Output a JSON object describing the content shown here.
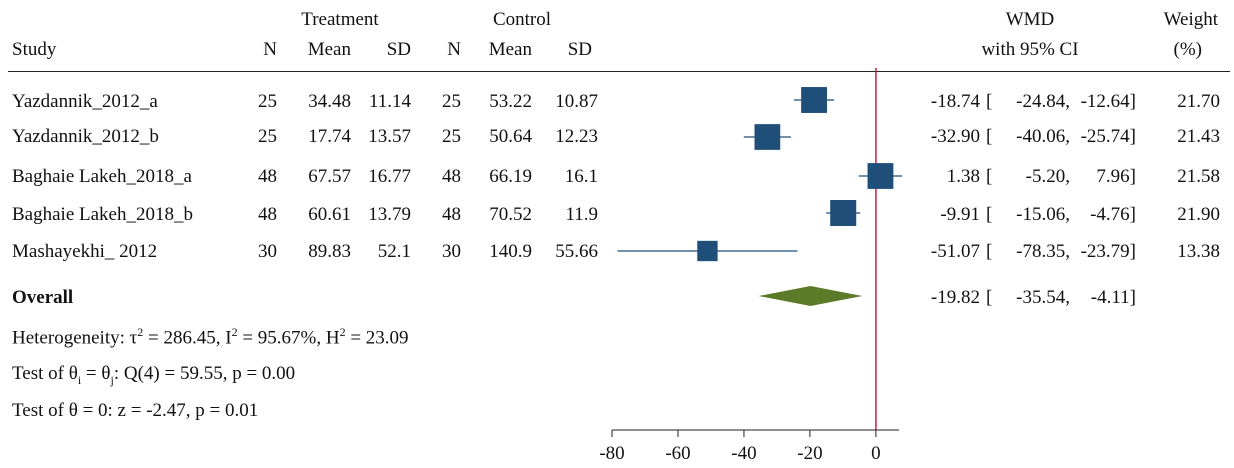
{
  "headers": {
    "treatment": "Treatment",
    "control": "Control",
    "wmd": "WMD",
    "weight": "Weight",
    "study": "Study",
    "n": "N",
    "mean": "Mean",
    "sd": "SD",
    "ci": "with 95% CI",
    "pct": "(%)"
  },
  "rows": [
    {
      "study": "Yazdannik_2012_a",
      "tn": "25",
      "tmean": "34.48",
      "tsd": "11.14",
      "cn": "25",
      "cmean": "53.22",
      "csd": "10.87",
      "wmd": "-18.74",
      "lo": "-24.84,",
      "hi": "-12.64]",
      "weight": "21.70"
    },
    {
      "study": "Yazdannik_2012_b",
      "tn": "25",
      "tmean": "17.74",
      "tsd": "13.57",
      "cn": "25",
      "cmean": "50.64",
      "csd": "12.23",
      "wmd": "-32.90",
      "lo": "-40.06,",
      "hi": "-25.74]",
      "weight": "21.43"
    },
    {
      "study": "Baghaie Lakeh_2018_a",
      "tn": "48",
      "tmean": "67.57",
      "tsd": "16.77",
      "cn": "48",
      "cmean": "66.19",
      "csd": "16.1",
      "wmd": "1.38",
      "lo": "-5.20,",
      "hi": "7.96]",
      "weight": "21.58"
    },
    {
      "study": "Baghaie Lakeh_2018_b",
      "tn": "48",
      "tmean": "60.61",
      "tsd": "13.79",
      "cn": "48",
      "cmean": "70.52",
      "csd": "11.9",
      "wmd": "-9.91",
      "lo": "-15.06,",
      "hi": "-4.76]",
      "weight": "21.90"
    },
    {
      "study": "Mashayekhi_ 2012",
      "tn": "30",
      "tmean": "89.83",
      "tsd": "52.1",
      "cn": "30",
      "cmean": "140.9",
      "csd": "55.66",
      "wmd": "-51.07",
      "lo": "-78.35,",
      "hi": "-23.79]",
      "weight": "13.38"
    }
  ],
  "overall": {
    "label": "Overall",
    "wmd": "-19.82",
    "lo": "-35.54,",
    "hi": "-4.11]"
  },
  "stats": {
    "het_prefix": "Heterogeneity: τ",
    "het_tau": " = 286.45, I",
    "het_i": " = 95.67%, H",
    "het_h": " = 23.09",
    "sup2": "2",
    "test1_a": "Test of θ",
    "sub_i": "i",
    "test1_b": " = θ",
    "sub_j": "j",
    "test1_c": ": Q(4) = 59.55, p = 0.00",
    "test2": "Test of θ = 0: z = -2.47, p = 0.01"
  },
  "bracket": "[",
  "chart_data": {
    "type": "scatter",
    "title": "",
    "xlabel": "",
    "ylabel": "",
    "xlim": [
      -80,
      7
    ],
    "xticks": [
      -80,
      -60,
      -40,
      -20,
      0
    ],
    "null_line": 0,
    "colors": {
      "box": "#1f4e79",
      "diamond": "#5b7a2a",
      "null_line": "#cc1f3b",
      "axis": "#222222"
    },
    "studies": [
      {
        "name": "Yazdannik_2012_a",
        "effect": -18.74,
        "lower": -24.84,
        "upper": -12.64,
        "weight": 21.7
      },
      {
        "name": "Yazdannik_2012_b",
        "effect": -32.9,
        "lower": -40.06,
        "upper": -25.74,
        "weight": 21.43
      },
      {
        "name": "Baghaie Lakeh_2018_a",
        "effect": 1.38,
        "lower": -5.2,
        "upper": 7.96,
        "weight": 21.58
      },
      {
        "name": "Baghaie Lakeh_2018_b",
        "effect": -9.91,
        "lower": -15.06,
        "upper": -4.76,
        "weight": 21.9
      },
      {
        "name": "Mashayekhi_ 2012",
        "effect": -51.07,
        "lower": -78.35,
        "upper": -23.79,
        "weight": 13.38
      }
    ],
    "overall": {
      "effect": -19.82,
      "lower": -35.54,
      "upper": -4.11
    }
  }
}
